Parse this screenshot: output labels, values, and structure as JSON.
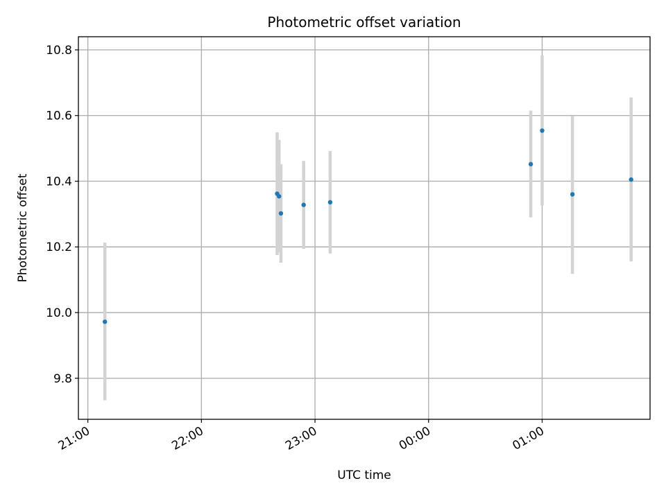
{
  "chart_data": {
    "type": "scatter",
    "title": "Photometric offset variation",
    "xlabel": "UTC time",
    "ylabel": "Photometric offset",
    "x_axis": "time (hours, UTC)",
    "xlim": [
      "20:55",
      "01:57"
    ],
    "ylim": [
      9.675,
      10.84
    ],
    "grid": true,
    "x_ticks": [
      {
        "value": "21:00",
        "label": "21:00"
      },
      {
        "value": "22:00",
        "label": "22:00"
      },
      {
        "value": "23:00",
        "label": "23:00"
      },
      {
        "value": "00:00",
        "label": "00:00"
      },
      {
        "value": "01:00",
        "label": "01:00"
      }
    ],
    "y_ticks": [
      {
        "value": 9.8,
        "label": "9.8"
      },
      {
        "value": 10.0,
        "label": "10.0"
      },
      {
        "value": 10.2,
        "label": "10.2"
      },
      {
        "value": 10.4,
        "label": "10.4"
      },
      {
        "value": 10.6,
        "label": "10.6"
      },
      {
        "value": 10.8,
        "label": "10.8"
      }
    ],
    "series": [
      {
        "marker_color": "#1f77b4",
        "errorbar_color": "#d3d3d3",
        "points": [
          {
            "x": "21:09",
            "y": 9.972,
            "y_low": 9.733,
            "y_high": 10.213
          },
          {
            "x": "22:40",
            "y": 10.362,
            "y_low": 10.175,
            "y_high": 10.549
          },
          {
            "x": "22:41",
            "y": 10.354,
            "y_low": 10.183,
            "y_high": 10.526
          },
          {
            "x": "22:42",
            "y": 10.302,
            "y_low": 10.152,
            "y_high": 10.452
          },
          {
            "x": "22:54",
            "y": 10.328,
            "y_low": 10.194,
            "y_high": 10.462
          },
          {
            "x": "23:08",
            "y": 10.336,
            "y_low": 10.18,
            "y_high": 10.492
          },
          {
            "x": "00:54",
            "y": 10.452,
            "y_low": 10.29,
            "y_high": 10.615
          },
          {
            "x": "01:00",
            "y": 10.554,
            "y_low": 10.326,
            "y_high": 10.783
          },
          {
            "x": "01:16",
            "y": 10.36,
            "y_low": 10.118,
            "y_high": 10.598
          },
          {
            "x": "01:47",
            "y": 10.405,
            "y_low": 10.156,
            "y_high": 10.655
          }
        ]
      }
    ]
  }
}
